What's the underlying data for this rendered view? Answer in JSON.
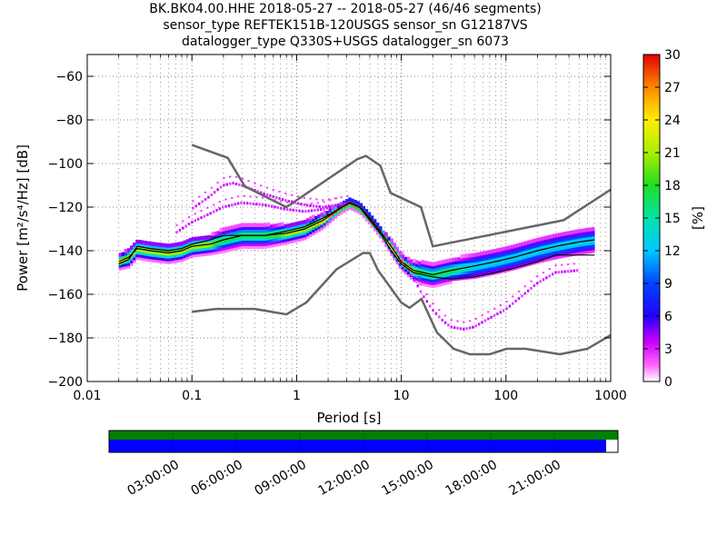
{
  "chart_data": {
    "type": "heatmap",
    "title": "BK.BK04.00.HHE   2018-05-27 -- 2018-05-27  (46/46 segments)",
    "subtitle_lines": [
      "sensor_type REFTEK151B-120USGS sensor_sn G12187VS",
      "datalogger_type Q330S+USGS datalogger_sn 6073"
    ],
    "xlabel": "Period [s]",
    "ylabel": "Power [m²/s⁴/Hz] [dB]",
    "xscale": "log",
    "xlim": [
      0.01,
      1000
    ],
    "ylim": [
      -200,
      -50
    ],
    "xticks": [
      0.01,
      0.1,
      1,
      10,
      100,
      1000
    ],
    "xtick_labels": [
      "0.01",
      "0.1",
      "1",
      "10",
      "100",
      "1000"
    ],
    "yticks": [
      -200,
      -180,
      -160,
      -140,
      -120,
      -100,
      -80,
      -60
    ],
    "ytick_labels": [
      "−200",
      "−180",
      "−160",
      "−140",
      "−120",
      "−100",
      "−80",
      "−60"
    ],
    "grid": true,
    "colorbar": {
      "label": "[%]",
      "range": [
        0,
        30
      ],
      "ticks": [
        0,
        3,
        6,
        9,
        12,
        15,
        18,
        21,
        24,
        27,
        30
      ]
    },
    "noise_models": [
      {
        "x": [
          0.1,
          0.22,
          0.32,
          0.8,
          3.8,
          4.6,
          6.3,
          7.9,
          15.4,
          20,
          354.8,
          1000
        ],
        "y": [
          -91.5,
          -97.4,
          -110.5,
          -120,
          -98,
          -96.5,
          -101,
          -113.5,
          -120,
          -138,
          -126,
          -112
        ]
      },
      {
        "x": [
          0.1,
          0.17,
          0.4,
          0.8,
          1.24,
          2.4,
          4.3,
          5,
          6,
          10,
          12,
          15.6,
          21.9,
          31.6,
          45,
          70,
          101,
          154,
          328,
          600,
          1000
        ],
        "y": [
          -168,
          -166.7,
          -166.7,
          -169.2,
          -163.7,
          -148.6,
          -141.1,
          -141.1,
          -149,
          -163.8,
          -166.2,
          -162.1,
          -177.5,
          -185,
          -187.5,
          -187.5,
          -185,
          -185,
          -187.5,
          -185,
          -178.7
        ]
      }
    ],
    "mode_curve": {
      "x": [
        0.02,
        0.025,
        0.03,
        0.04,
        0.06,
        0.08,
        0.1,
        0.15,
        0.2,
        0.3,
        0.5,
        0.8,
        1.2,
        1.8,
        2.5,
        3.2,
        4,
        5,
        6.5,
        8,
        10,
        13,
        16,
        20,
        30,
        50,
        80,
        120,
        200,
        300,
        500,
        700
      ],
      "y": [
        -145,
        -143,
        -139,
        -140,
        -141,
        -140,
        -138,
        -137,
        -135,
        -133,
        -133,
        -132,
        -130,
        -126,
        -121,
        -118,
        -120,
        -125,
        -132,
        -138,
        -145,
        -149,
        -150,
        -151,
        -149,
        -147,
        -145,
        -143,
        -140,
        -138,
        -136,
        -135
      ]
    },
    "mean_curve": {
      "x": [
        0.02,
        0.025,
        0.03,
        0.04,
        0.06,
        0.08,
        0.1,
        0.15,
        0.2,
        0.3,
        0.5,
        0.8,
        1.2,
        1.8,
        2.5,
        3.2,
        4,
        5,
        6.5,
        8,
        10,
        13,
        16,
        20,
        30,
        50,
        80,
        120,
        200,
        300,
        500,
        700
      ],
      "y": [
        -146,
        -144,
        -138,
        -139,
        -140,
        -139,
        -137,
        -135,
        -133,
        -133,
        -133,
        -131,
        -129,
        -125,
        -121,
        -118,
        -120,
        -126,
        -133,
        -140,
        -146,
        -150,
        -151,
        -152,
        -153,
        -152,
        -150,
        -148,
        -145,
        -142,
        -142,
        -142
      ]
    },
    "dense_band": {
      "x": [
        0.02,
        0.025,
        0.03,
        0.04,
        0.06,
        0.08,
        0.1,
        0.15,
        0.2,
        0.3,
        0.5,
        0.8,
        1.2,
        1.8,
        2.5,
        3.2,
        4,
        5,
        6.5,
        8,
        10,
        13,
        16,
        20,
        30,
        50,
        80,
        120,
        200,
        300,
        500,
        700
      ],
      "y": [
        -145,
        -143,
        -139,
        -140,
        -141,
        -140,
        -138,
        -137,
        -135,
        -133,
        -133,
        -132,
        -130,
        -126,
        -121,
        -118,
        -120,
        -125,
        -132,
        -138,
        -145,
        -149,
        -150,
        -151,
        -149,
        -147,
        -145,
        -143,
        -140,
        -138,
        -136,
        -135
      ],
      "spread_db": [
        3,
        4,
        4,
        4,
        4,
        4,
        4,
        4,
        5,
        5,
        5,
        4,
        4,
        3,
        2,
        2,
        2,
        2,
        2,
        3,
        3,
        4,
        5,
        5,
        5,
        6,
        6,
        6,
        6,
        6,
        6,
        6
      ]
    },
    "sparse_traces": [
      {
        "x": [
          0.1,
          0.15,
          0.2,
          0.25,
          0.3,
          0.5,
          0.8,
          1.2,
          1.8,
          2.5,
          3.2
        ],
        "y": [
          -121,
          -115,
          -110,
          -109,
          -110,
          -114,
          -117,
          -119,
          -120,
          -119,
          -118
        ]
      },
      {
        "x": [
          0.07,
          0.1,
          0.15,
          0.2,
          0.3,
          0.5,
          0.8,
          1.2,
          1.8,
          2.5
        ],
        "y": [
          -132,
          -127,
          -123,
          -120,
          -118,
          -119,
          -121,
          -122,
          -121,
          -119
        ]
      },
      {
        "x": [
          10,
          13,
          16,
          20,
          25,
          30,
          40,
          50,
          70,
          100,
          150,
          200,
          300,
          500
        ],
        "y": [
          -143,
          -152,
          -160,
          -167,
          -172,
          -175,
          -176,
          -175,
          -171,
          -167,
          -160,
          -155,
          -150,
          -149
        ]
      }
    ],
    "data_availability": {
      "time_labels": [
        "03:00:00",
        "06:00:00",
        "09:00:00",
        "12:00:00",
        "15:00:00",
        "18:00:00",
        "21:00:00"
      ],
      "coverage_fraction": 0.977,
      "gap_color": "#ffffff"
    },
    "colors": {
      "noise_model": "#666666",
      "mode": "#000000",
      "mean": "#000000",
      "availability_top": "#007f00",
      "availability_bottom": "#0000ff"
    }
  }
}
